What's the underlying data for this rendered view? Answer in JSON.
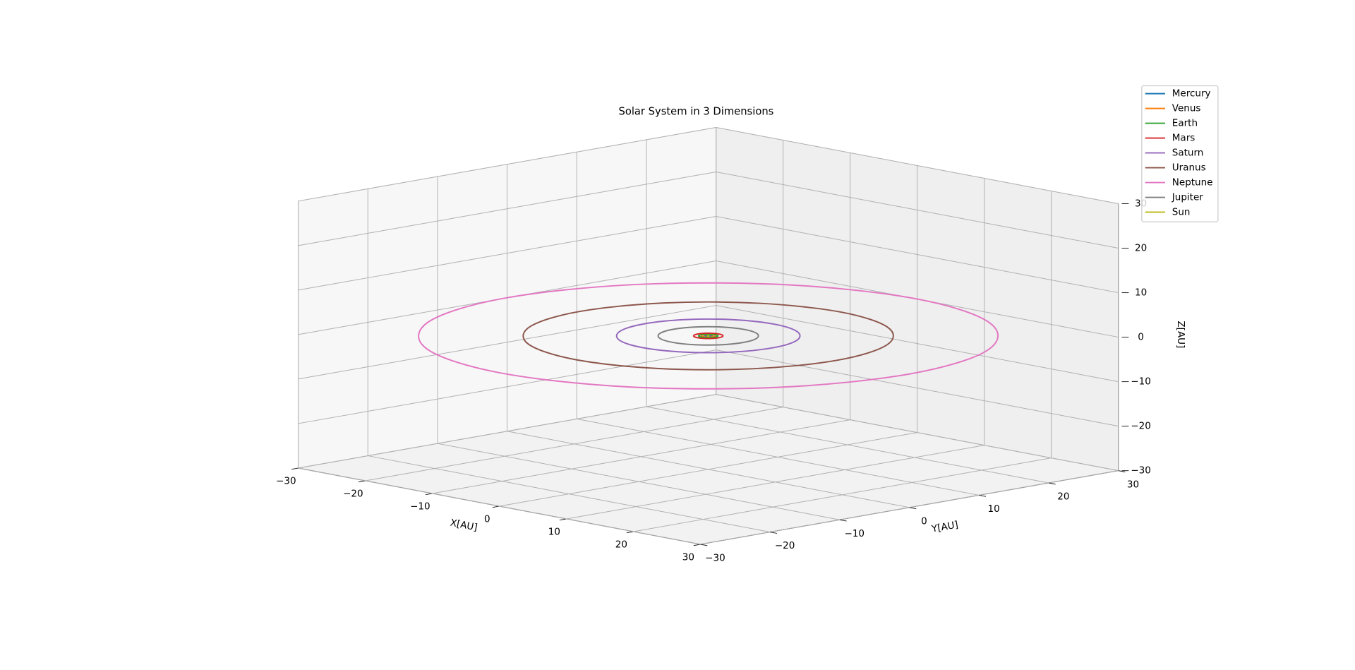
{
  "chart_data": {
    "type": "line3d",
    "title": "Solar System in 3 Dimensions",
    "xlabel": "X[AU]",
    "ylabel": "Y[AU]",
    "zlabel": "Z[AU]",
    "xlim": [
      -30,
      30
    ],
    "ylim": [
      -30,
      30
    ],
    "zlim": [
      -30,
      30
    ],
    "xticks": [
      {
        "value": -30,
        "label": "−30"
      },
      {
        "value": -20,
        "label": "−20"
      },
      {
        "value": -10,
        "label": "−10"
      },
      0,
      10,
      20,
      30
    ],
    "yticks": [
      {
        "value": -30,
        "label": "−30"
      },
      {
        "value": -20,
        "label": "−20"
      },
      {
        "value": -10,
        "label": "−10"
      },
      0,
      10,
      20,
      30
    ],
    "zticks": [
      {
        "value": -30,
        "label": "−30"
      },
      {
        "value": -20,
        "label": "−20"
      },
      {
        "value": -10,
        "label": "−10"
      },
      0,
      10,
      20,
      30
    ],
    "grid": true,
    "legend": "upper right",
    "series": [
      {
        "name": "Mercury",
        "color": "#1f77b4",
        "x": [
          0.39,
          0.34,
          0.2,
          0,
          -0.2,
          -0.34,
          -0.39,
          -0.34,
          -0.2,
          0,
          0.2,
          0.34
        ],
        "y": [
          0,
          0.2,
          0.34,
          0.39,
          0.34,
          0.2,
          0,
          -0.2,
          -0.34,
          -0.39,
          -0.34,
          -0.2
        ],
        "z": [
          0,
          0,
          0,
          0,
          0,
          0,
          0,
          0,
          0,
          0,
          0,
          0
        ]
      },
      {
        "name": "Venus",
        "color": "#ff7f0e",
        "x": [
          0.72,
          0.62,
          0.36,
          0,
          -0.36,
          -0.62,
          -0.72,
          -0.62,
          -0.36,
          0,
          0.36,
          0.62
        ],
        "y": [
          0,
          0.36,
          0.62,
          0.72,
          0.62,
          0.36,
          0,
          -0.36,
          -0.62,
          -0.72,
          -0.62,
          -0.36
        ],
        "z": [
          0,
          0,
          0,
          0,
          0,
          0,
          0,
          0,
          0,
          0,
          0,
          0
        ]
      },
      {
        "name": "Earth",
        "color": "#2ca02c",
        "x": [
          1,
          0.87,
          0.5,
          0,
          -0.5,
          -0.87,
          -1,
          -0.87,
          -0.5,
          0,
          0.5,
          0.87
        ],
        "y": [
          0,
          0.5,
          0.87,
          1,
          0.87,
          0.5,
          0,
          -0.5,
          -0.87,
          -1,
          -0.87,
          -0.5
        ],
        "z": [
          0,
          0,
          0,
          0,
          0,
          0,
          0,
          0,
          0,
          0,
          0,
          0
        ]
      },
      {
        "name": "Mars",
        "color": "#d62728",
        "x": [
          1.52,
          1.32,
          0.76,
          0,
          -0.76,
          -1.32,
          -1.52,
          -1.32,
          -0.76,
          0,
          0.76,
          1.32
        ],
        "y": [
          0,
          0.76,
          1.32,
          1.52,
          1.32,
          0.76,
          0,
          -0.76,
          -1.32,
          -1.52,
          -1.32,
          -0.76
        ],
        "z": [
          0,
          0,
          0,
          0,
          0,
          0,
          0,
          0,
          0,
          0,
          0,
          0
        ]
      },
      {
        "name": "Saturn",
        "color": "#9467bd",
        "x": [
          9.5,
          8.23,
          4.75,
          0,
          -4.75,
          -8.23,
          -9.5,
          -8.23,
          -4.75,
          0,
          4.75,
          8.23
        ],
        "y": [
          0,
          4.75,
          8.23,
          9.5,
          8.23,
          4.75,
          0,
          -4.75,
          -8.23,
          -9.5,
          -8.23,
          -4.75
        ],
        "z": [
          0,
          0,
          0,
          0,
          0,
          0,
          0,
          0,
          0,
          0,
          0,
          0
        ]
      },
      {
        "name": "Uranus",
        "color": "#8c564b",
        "x": [
          19.2,
          16.6,
          9.6,
          0,
          -9.6,
          -16.6,
          -19.2,
          -16.6,
          -9.6,
          0,
          9.6,
          16.6
        ],
        "y": [
          0,
          9.6,
          16.6,
          19.2,
          16.6,
          9.6,
          0,
          -9.6,
          -16.6,
          -19.2,
          -16.6,
          -9.6
        ],
        "z": [
          0,
          0,
          0,
          0,
          0,
          0,
          0,
          0,
          0,
          0,
          0,
          0
        ]
      },
      {
        "name": "Neptune",
        "color": "#e377c2",
        "x": [
          30,
          26,
          15,
          0,
          -15,
          -26,
          -30,
          -26,
          -15,
          0,
          15,
          26
        ],
        "y": [
          0,
          15,
          26,
          30,
          26,
          15,
          0,
          -15,
          -26,
          -30,
          -26,
          -15
        ],
        "z": [
          0,
          0,
          0,
          0,
          0,
          0,
          0,
          0,
          0,
          0,
          0,
          0
        ]
      },
      {
        "name": "Jupiter",
        "color": "#7f7f7f",
        "x": [
          5.2,
          4.5,
          2.6,
          0,
          -2.6,
          -4.5,
          -5.2,
          -4.5,
          -2.6,
          0,
          2.6,
          4.5
        ],
        "y": [
          0,
          2.6,
          4.5,
          5.2,
          4.5,
          2.6,
          0,
          -2.6,
          -4.5,
          -5.2,
          -4.5,
          -2.6
        ],
        "z": [
          0,
          0,
          0,
          0,
          0,
          0,
          0,
          0,
          0,
          0,
          0,
          0
        ]
      },
      {
        "name": "Sun",
        "color": "#bcbd22",
        "x": [
          0
        ],
        "y": [
          0
        ],
        "z": [
          0
        ]
      }
    ]
  }
}
